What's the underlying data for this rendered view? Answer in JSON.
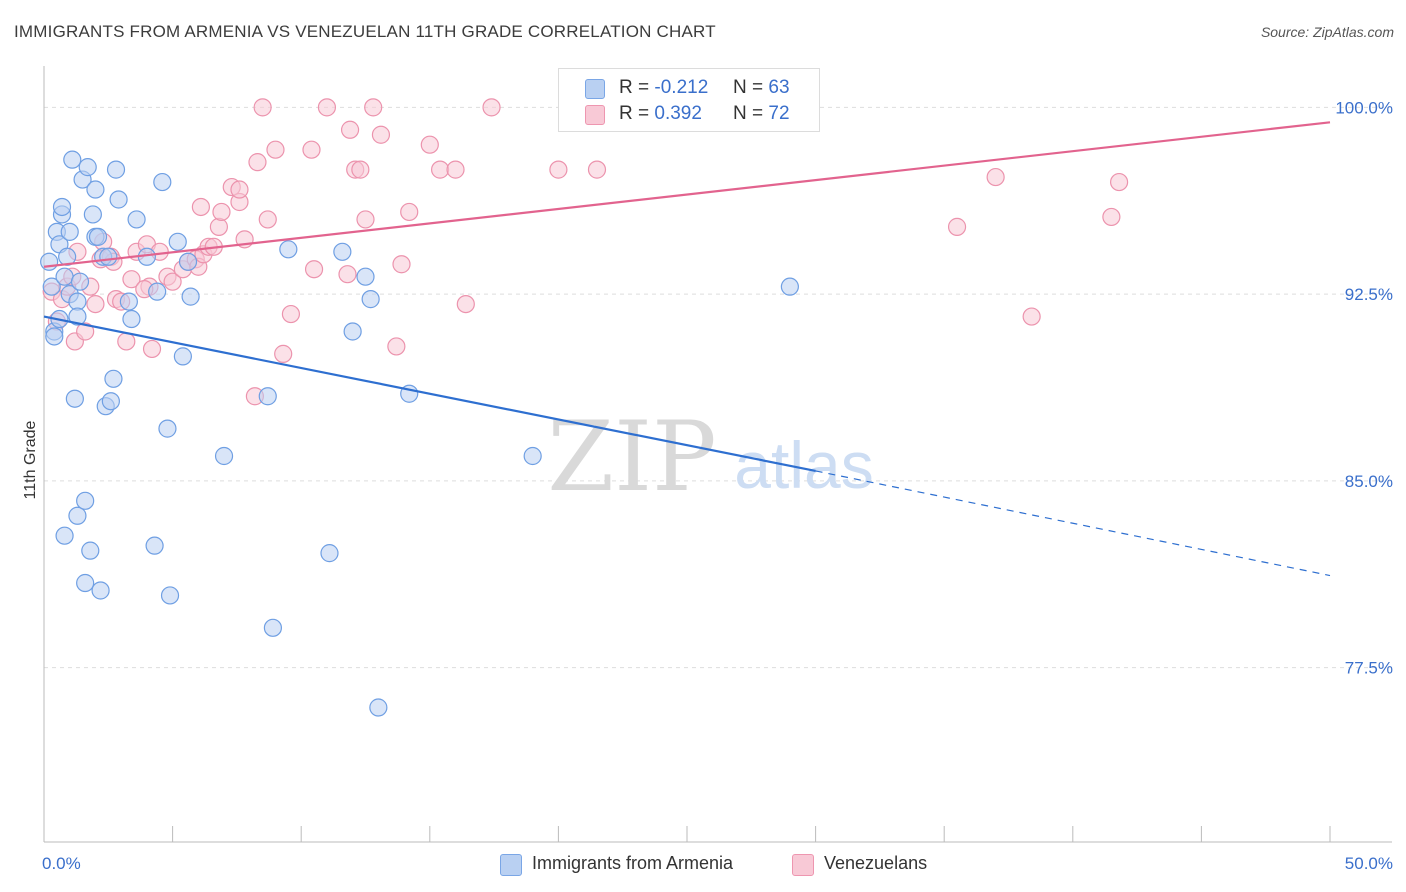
{
  "title": "IMMIGRANTS FROM ARMENIA VS VENEZUELAN 11TH GRADE CORRELATION CHART",
  "source": "Source: ZipAtlas.com",
  "watermark": {
    "zip": "ZIP",
    "atlas": "atlas"
  },
  "legend": {
    "r_label": "R =",
    "n_label": "N =",
    "series": [
      {
        "name": "Immigrants from Armenia",
        "r": "-0.212",
        "n": "63"
      },
      {
        "name": "Venezuelans",
        "r": "0.392",
        "n": "72"
      }
    ]
  },
  "colors": {
    "blue_fill": "#b9d0f2",
    "blue_stroke": "#6f9fe3",
    "blue_line": "#2e6fd0",
    "pink_fill": "#f8c9d6",
    "pink_stroke": "#ec93ad",
    "pink_line": "#e2638e",
    "grid": "#dddddd",
    "tick_text": "#3a6fcb"
  },
  "chart_data": {
    "type": "scatter",
    "title": "IMMIGRANTS FROM ARMENIA VS VENEZUELAN 11TH GRADE CORRELATION CHART",
    "xlabel": "",
    "ylabel": "11th Grade",
    "xlim": [
      0,
      50
    ],
    "ylim": [
      70.5,
      101.5
    ],
    "x_tick_labels": [
      {
        "value": 0,
        "label": "0.0%"
      },
      {
        "value": 50,
        "label": "50.0%"
      }
    ],
    "x_minor_ticks": [
      0,
      5,
      10,
      15,
      20,
      25,
      30,
      35,
      40,
      45,
      50
    ],
    "y_ticks": [
      {
        "value": 77.5,
        "label": "77.5%"
      },
      {
        "value": 85.0,
        "label": "85.0%"
      },
      {
        "value": 92.5,
        "label": "92.5%"
      },
      {
        "value": 100.0,
        "label": "100.0%"
      }
    ],
    "series": [
      {
        "name": "Immigrants from Armenia",
        "r": -0.212,
        "n": 63,
        "trend": {
          "x0": 0,
          "y0": 91.6,
          "x1": 30,
          "y1": 85.4,
          "dash_to_x": 50,
          "dash_to_y": 81.2
        },
        "points": [
          [
            0.2,
            93.8
          ],
          [
            0.3,
            92.8
          ],
          [
            0.4,
            91.0
          ],
          [
            0.4,
            90.8
          ],
          [
            0.5,
            95.0
          ],
          [
            0.6,
            94.5
          ],
          [
            0.6,
            91.5
          ],
          [
            0.7,
            95.7
          ],
          [
            0.7,
            96.0
          ],
          [
            0.8,
            93.2
          ],
          [
            0.9,
            94.0
          ],
          [
            1.0,
            95.0
          ],
          [
            1.0,
            92.5
          ],
          [
            1.1,
            97.9
          ],
          [
            1.2,
            88.3
          ],
          [
            1.3,
            92.2
          ],
          [
            1.3,
            91.6
          ],
          [
            1.4,
            93.0
          ],
          [
            1.3,
            83.6
          ],
          [
            0.8,
            82.8
          ],
          [
            1.5,
            97.1
          ],
          [
            1.6,
            84.2
          ],
          [
            1.6,
            80.9
          ],
          [
            1.7,
            97.6
          ],
          [
            1.8,
            82.2
          ],
          [
            1.9,
            95.7
          ],
          [
            2.0,
            96.7
          ],
          [
            2.0,
            94.8
          ],
          [
            2.1,
            94.8
          ],
          [
            2.2,
            80.6
          ],
          [
            2.3,
            94.0
          ],
          [
            2.4,
            88.0
          ],
          [
            2.6,
            88.2
          ],
          [
            2.7,
            89.1
          ],
          [
            2.8,
            97.5
          ],
          [
            2.9,
            96.3
          ],
          [
            3.3,
            92.2
          ],
          [
            3.4,
            91.5
          ],
          [
            3.6,
            95.5
          ],
          [
            4.0,
            94.0
          ],
          [
            4.3,
            82.4
          ],
          [
            4.4,
            92.6
          ],
          [
            4.6,
            97.0
          ],
          [
            4.8,
            87.1
          ],
          [
            4.9,
            80.4
          ],
          [
            5.2,
            94.6
          ],
          [
            5.4,
            90.0
          ],
          [
            5.7,
            92.4
          ],
          [
            7.0,
            86.0
          ],
          [
            8.7,
            88.4
          ],
          [
            8.9,
            79.1
          ],
          [
            9.5,
            94.3
          ],
          [
            11.1,
            82.1
          ],
          [
            11.6,
            94.2
          ],
          [
            12.0,
            91.0
          ],
          [
            12.5,
            93.2
          ],
          [
            12.7,
            92.3
          ],
          [
            13.0,
            75.9
          ],
          [
            14.2,
            88.5
          ],
          [
            19.0,
            86.0
          ],
          [
            29.0,
            92.8
          ],
          [
            2.5,
            94.0
          ],
          [
            5.6,
            93.8
          ]
        ]
      },
      {
        "name": "Venezuelans",
        "r": 0.392,
        "n": 72,
        "trend": {
          "x0": 0,
          "y0": 93.6,
          "x1": 50,
          "y1": 99.4
        },
        "points": [
          [
            0.3,
            92.6
          ],
          [
            0.5,
            91.4
          ],
          [
            0.7,
            92.3
          ],
          [
            0.9,
            92.8
          ],
          [
            1.1,
            93.2
          ],
          [
            1.2,
            90.6
          ],
          [
            1.3,
            94.2
          ],
          [
            1.6,
            91.0
          ],
          [
            1.8,
            92.8
          ],
          [
            2.0,
            92.1
          ],
          [
            2.2,
            93.9
          ],
          [
            2.3,
            94.6
          ],
          [
            2.6,
            94.0
          ],
          [
            2.8,
            92.3
          ],
          [
            3.0,
            92.2
          ],
          [
            3.2,
            90.6
          ],
          [
            3.4,
            93.1
          ],
          [
            3.6,
            94.2
          ],
          [
            4.0,
            94.5
          ],
          [
            4.1,
            92.8
          ],
          [
            4.2,
            90.3
          ],
          [
            4.5,
            94.2
          ],
          [
            4.8,
            93.2
          ],
          [
            5.0,
            93.0
          ],
          [
            5.4,
            93.5
          ],
          [
            5.6,
            93.8
          ],
          [
            5.9,
            93.9
          ],
          [
            6.0,
            93.6
          ],
          [
            6.2,
            94.1
          ],
          [
            6.4,
            94.4
          ],
          [
            6.6,
            94.4
          ],
          [
            6.8,
            95.2
          ],
          [
            6.9,
            95.8
          ],
          [
            7.3,
            96.8
          ],
          [
            7.6,
            96.2
          ],
          [
            7.6,
            96.7
          ],
          [
            7.8,
            94.7
          ],
          [
            8.2,
            88.4
          ],
          [
            8.3,
            97.8
          ],
          [
            8.5,
            100.0
          ],
          [
            8.7,
            95.5
          ],
          [
            9.0,
            98.3
          ],
          [
            9.3,
            90.1
          ],
          [
            9.6,
            91.7
          ],
          [
            10.4,
            98.3
          ],
          [
            10.5,
            93.5
          ],
          [
            11.0,
            100.0
          ],
          [
            11.8,
            93.3
          ],
          [
            11.9,
            99.1
          ],
          [
            12.1,
            97.5
          ],
          [
            12.3,
            97.5
          ],
          [
            12.5,
            95.5
          ],
          [
            12.8,
            100.0
          ],
          [
            13.1,
            98.9
          ],
          [
            13.7,
            90.4
          ],
          [
            13.9,
            93.7
          ],
          [
            14.2,
            95.8
          ],
          [
            15.0,
            98.5
          ],
          [
            15.4,
            97.5
          ],
          [
            16.0,
            97.5
          ],
          [
            16.4,
            92.1
          ],
          [
            17.4,
            100.0
          ],
          [
            20.0,
            97.5
          ],
          [
            21.5,
            97.5
          ],
          [
            35.5,
            95.2
          ],
          [
            37.0,
            97.2
          ],
          [
            38.4,
            91.6
          ],
          [
            41.5,
            95.6
          ],
          [
            41.8,
            97.0
          ],
          [
            6.1,
            96.0
          ],
          [
            2.7,
            93.8
          ],
          [
            3.9,
            92.7
          ]
        ]
      }
    ]
  }
}
